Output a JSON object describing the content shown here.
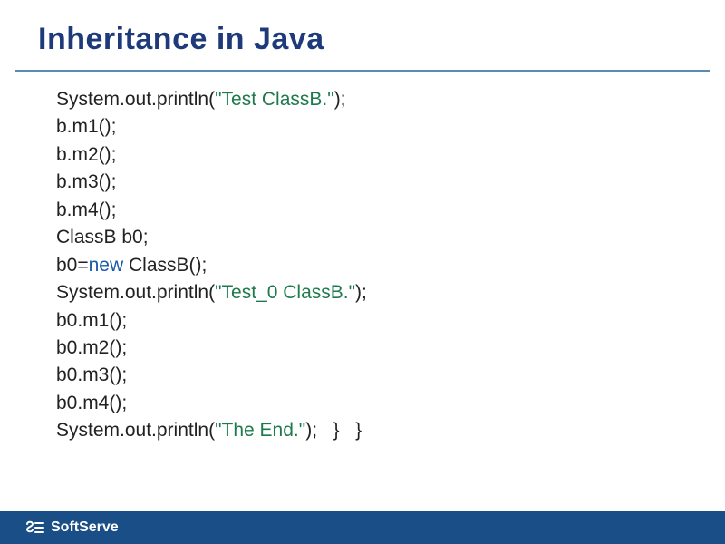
{
  "title": "Inheritance in Java",
  "colors": {
    "title": "#1f3a7a",
    "rule": "#7aa5c9",
    "code_default": "#222222",
    "code_string": "#1e7a4c",
    "code_keyword": "#1a5aa8",
    "footer_bg": "#1a4e87",
    "footer_text": "#ffffff",
    "background": "#ffffff"
  },
  "typography": {
    "title_fontsize": 34,
    "title_weight": "bold",
    "code_fontsize": 21,
    "code_lineheight": 1.45,
    "font_family": "Verdana"
  },
  "code": {
    "lines": [
      [
        {
          "t": "System.out.println(",
          "c": "default"
        },
        {
          "t": "\"Test ClassB.\"",
          "c": "string"
        },
        {
          "t": ");",
          "c": "default"
        }
      ],
      [
        {
          "t": "b.m1();",
          "c": "default"
        }
      ],
      [
        {
          "t": "b.m2();",
          "c": "default"
        }
      ],
      [
        {
          "t": "b.m3();",
          "c": "default"
        }
      ],
      [
        {
          "t": "b.m4();",
          "c": "default"
        }
      ],
      [
        {
          "t": "ClassB b0;",
          "c": "default"
        }
      ],
      [
        {
          "t": "b0=",
          "c": "default"
        },
        {
          "t": "new",
          "c": "keyword"
        },
        {
          "t": " ClassB();",
          "c": "default"
        }
      ],
      [
        {
          "t": "System.out.println(",
          "c": "default"
        },
        {
          "t": "\"Test_0 ClassB.\"",
          "c": "string"
        },
        {
          "t": ");",
          "c": "default"
        }
      ],
      [
        {
          "t": "b0.m1();",
          "c": "default"
        }
      ],
      [
        {
          "t": "b0.m2();",
          "c": "default"
        }
      ],
      [
        {
          "t": "b0.m3();",
          "c": "default"
        }
      ],
      [
        {
          "t": "b0.m4();",
          "c": "default"
        }
      ],
      [
        {
          "t": "System.out.println(",
          "c": "default"
        },
        {
          "t": "\"The End.\"",
          "c": "string"
        },
        {
          "t": ");   }   }",
          "c": "default"
        }
      ]
    ]
  },
  "footer": {
    "brand": "SoftServe"
  }
}
